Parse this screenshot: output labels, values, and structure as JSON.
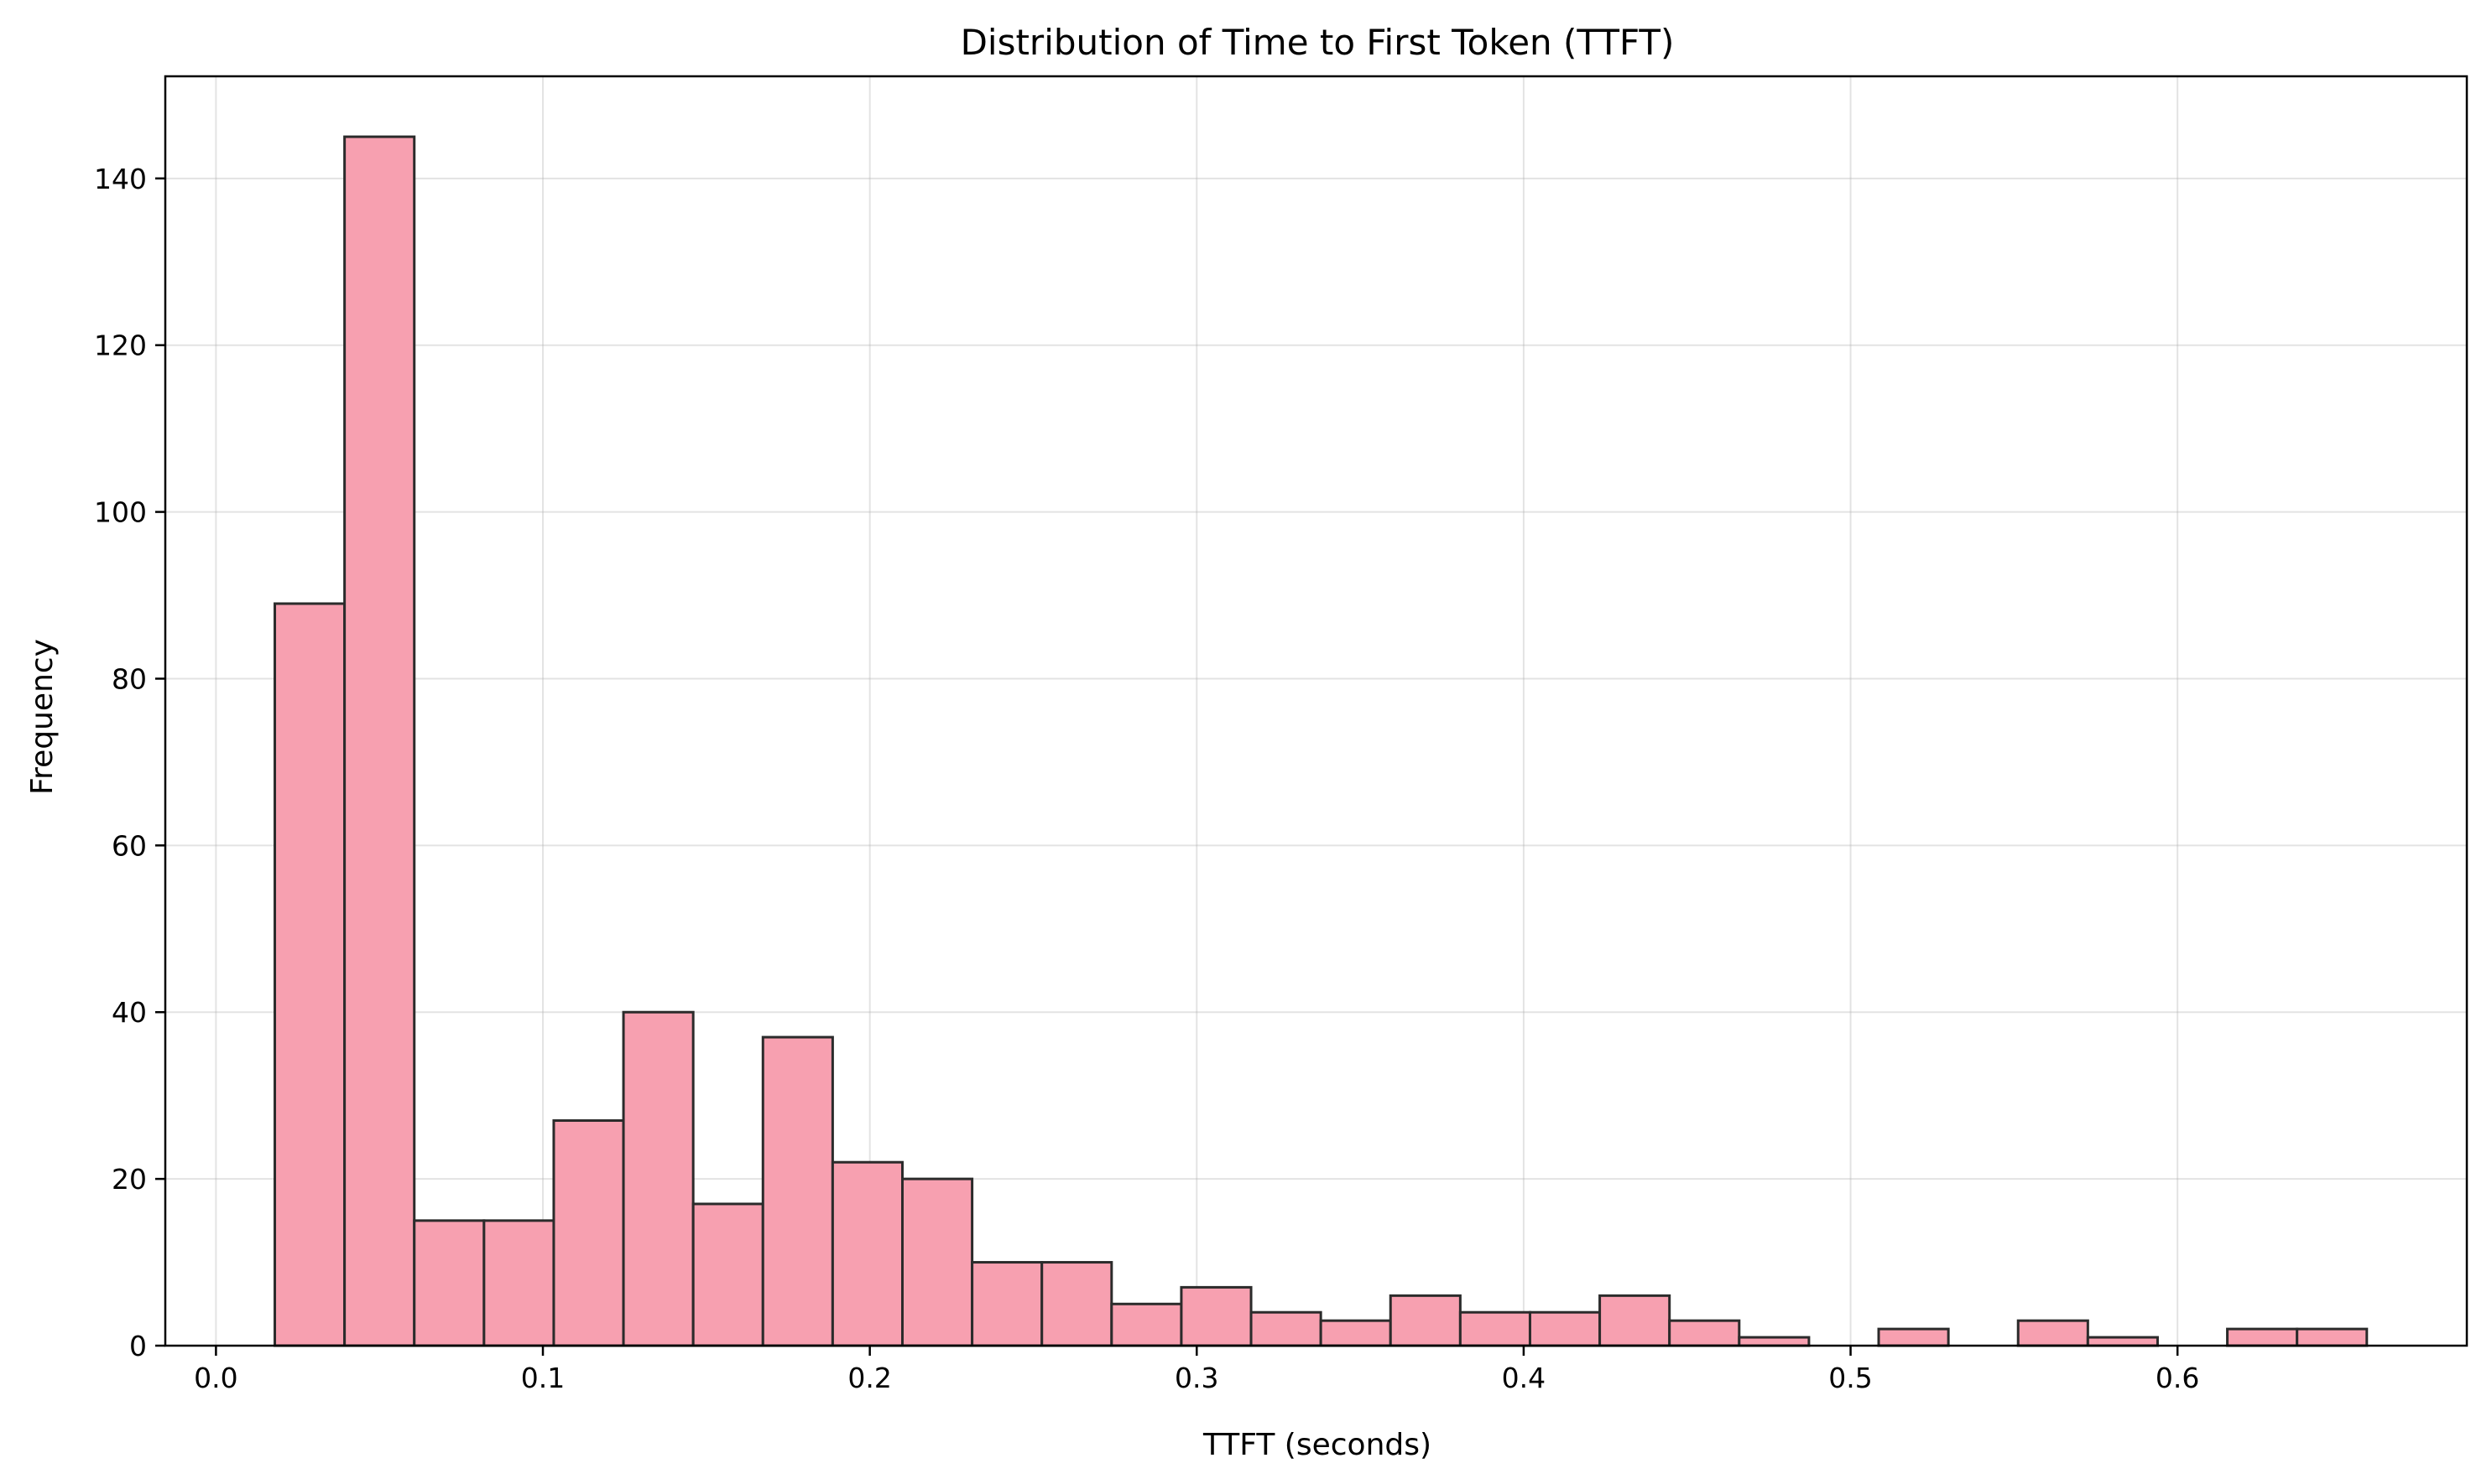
{
  "chart_data": {
    "type": "bar",
    "title": "Distribution of Time to First Token (TTFT)",
    "xlabel": "TTFT (seconds)",
    "ylabel": "Frequency",
    "xlim": [
      -0.0155,
      0.6885
    ],
    "ylim": [
      0,
      152.25
    ],
    "xticks": [
      0.0,
      0.1,
      0.2,
      0.3,
      0.4,
      0.5,
      0.6
    ],
    "xtick_labels": [
      "0.0",
      "0.1",
      "0.2",
      "0.3",
      "0.4",
      "0.5",
      "0.6"
    ],
    "yticks": [
      0,
      20,
      40,
      60,
      80,
      100,
      120,
      140
    ],
    "ytick_labels": [
      "0",
      "20",
      "40",
      "60",
      "80",
      "100",
      "120",
      "140"
    ],
    "grid": true,
    "colors": {
      "bar_fill": "#f7a0b0",
      "bar_edge": "#2b2b2b"
    },
    "bin_start": 0.018,
    "bin_width": 0.02133,
    "values": [
      89,
      145,
      15,
      15,
      27,
      40,
      17,
      37,
      22,
      20,
      10,
      10,
      5,
      7,
      4,
      3,
      6,
      4,
      4,
      6,
      3,
      1,
      0,
      2,
      0,
      3,
      1,
      0,
      2,
      2
    ]
  }
}
